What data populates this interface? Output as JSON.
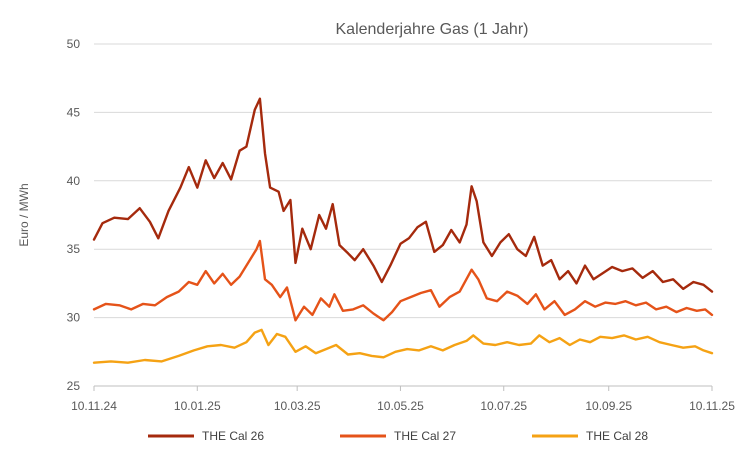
{
  "chart_data": {
    "type": "line",
    "title": "Kalenderjahre Gas (1 Jahr)",
    "xlabel": "",
    "ylabel": "Euro / MWh",
    "ylim": [
      25,
      50
    ],
    "y_ticks": [
      "25",
      "30",
      "35",
      "40",
      "45",
      "50"
    ],
    "x_range": [
      "2024-11-10",
      "2025-11-10"
    ],
    "x_ticks": [
      {
        "date": "2024-11-10",
        "label": "10.11.24"
      },
      {
        "date": "2025-01-10",
        "label": "10.01.25"
      },
      {
        "date": "2025-03-10",
        "label": "10.03.25"
      },
      {
        "date": "2025-05-10",
        "label": "10.05.25"
      },
      {
        "date": "2025-07-10",
        "label": "10.07.25"
      },
      {
        "date": "2025-09-10",
        "label": "10.09.25"
      },
      {
        "date": "2025-11-10",
        "label": "10.11.25"
      }
    ],
    "grid": true,
    "legend_position": "bottom",
    "series": [
      {
        "name": "THE Cal 26",
        "color": "#a52a0d",
        "points": [
          [
            "2024-11-10",
            35.7
          ],
          [
            "2024-11-15",
            36.9
          ],
          [
            "2024-11-22",
            37.3
          ],
          [
            "2024-11-30",
            37.2
          ],
          [
            "2024-12-07",
            38.0
          ],
          [
            "2024-12-13",
            37.0
          ],
          [
            "2024-12-18",
            35.8
          ],
          [
            "2024-12-24",
            37.8
          ],
          [
            "2024-12-31",
            39.5
          ],
          [
            "2025-01-05",
            41.0
          ],
          [
            "2025-01-10",
            39.5
          ],
          [
            "2025-01-15",
            41.5
          ],
          [
            "2025-01-20",
            40.2
          ],
          [
            "2025-01-25",
            41.3
          ],
          [
            "2025-01-30",
            40.1
          ],
          [
            "2025-02-04",
            42.2
          ],
          [
            "2025-02-08",
            42.5
          ],
          [
            "2025-02-13",
            45.2
          ],
          [
            "2025-02-16",
            46.0
          ],
          [
            "2025-02-19",
            42.0
          ],
          [
            "2025-02-22",
            39.5
          ],
          [
            "2025-02-27",
            39.2
          ],
          [
            "2025-03-02",
            37.8
          ],
          [
            "2025-03-06",
            38.6
          ],
          [
            "2025-03-09",
            34.0
          ],
          [
            "2025-03-13",
            36.5
          ],
          [
            "2025-03-18",
            35.0
          ],
          [
            "2025-03-23",
            37.5
          ],
          [
            "2025-03-27",
            36.5
          ],
          [
            "2025-03-31",
            38.3
          ],
          [
            "2025-04-04",
            35.3
          ],
          [
            "2025-04-09",
            34.7
          ],
          [
            "2025-04-13",
            34.2
          ],
          [
            "2025-04-18",
            35.0
          ],
          [
            "2025-04-24",
            33.8
          ],
          [
            "2025-04-29",
            32.6
          ],
          [
            "2025-05-04",
            33.8
          ],
          [
            "2025-05-10",
            35.4
          ],
          [
            "2025-05-15",
            35.8
          ],
          [
            "2025-05-20",
            36.6
          ],
          [
            "2025-05-25",
            37.0
          ],
          [
            "2025-05-30",
            34.8
          ],
          [
            "2025-06-04",
            35.3
          ],
          [
            "2025-06-09",
            36.4
          ],
          [
            "2025-06-14",
            35.5
          ],
          [
            "2025-06-18",
            36.8
          ],
          [
            "2025-06-21",
            39.6
          ],
          [
            "2025-06-24",
            38.5
          ],
          [
            "2025-06-28",
            35.5
          ],
          [
            "2025-07-03",
            34.5
          ],
          [
            "2025-07-08",
            35.5
          ],
          [
            "2025-07-13",
            36.1
          ],
          [
            "2025-07-18",
            35.0
          ],
          [
            "2025-07-23",
            34.5
          ],
          [
            "2025-07-28",
            35.9
          ],
          [
            "2025-08-02",
            33.8
          ],
          [
            "2025-08-07",
            34.2
          ],
          [
            "2025-08-12",
            32.8
          ],
          [
            "2025-08-17",
            33.4
          ],
          [
            "2025-08-22",
            32.5
          ],
          [
            "2025-08-27",
            33.8
          ],
          [
            "2025-09-01",
            32.8
          ],
          [
            "2025-09-06",
            33.2
          ],
          [
            "2025-09-12",
            33.7
          ],
          [
            "2025-09-18",
            33.4
          ],
          [
            "2025-09-24",
            33.6
          ],
          [
            "2025-09-30",
            32.9
          ],
          [
            "2025-10-06",
            33.4
          ],
          [
            "2025-10-12",
            32.6
          ],
          [
            "2025-10-18",
            32.8
          ],
          [
            "2025-10-24",
            32.1
          ],
          [
            "2025-10-30",
            32.6
          ],
          [
            "2025-11-05",
            32.4
          ],
          [
            "2025-11-10",
            31.9
          ]
        ]
      },
      {
        "name": "THE Cal 27",
        "color": "#e55319",
        "points": [
          [
            "2024-11-10",
            30.6
          ],
          [
            "2024-11-17",
            31.0
          ],
          [
            "2024-11-25",
            30.9
          ],
          [
            "2024-12-02",
            30.6
          ],
          [
            "2024-12-09",
            31.0
          ],
          [
            "2024-12-16",
            30.9
          ],
          [
            "2024-12-23",
            31.5
          ],
          [
            "2024-12-30",
            31.9
          ],
          [
            "2025-01-05",
            32.6
          ],
          [
            "2025-01-10",
            32.4
          ],
          [
            "2025-01-15",
            33.4
          ],
          [
            "2025-01-20",
            32.5
          ],
          [
            "2025-01-25",
            33.2
          ],
          [
            "2025-01-30",
            32.4
          ],
          [
            "2025-02-04",
            33.0
          ],
          [
            "2025-02-09",
            34.0
          ],
          [
            "2025-02-14",
            35.0
          ],
          [
            "2025-02-16",
            35.6
          ],
          [
            "2025-02-19",
            32.8
          ],
          [
            "2025-02-23",
            32.4
          ],
          [
            "2025-02-28",
            31.5
          ],
          [
            "2025-03-04",
            32.2
          ],
          [
            "2025-03-09",
            29.8
          ],
          [
            "2025-03-14",
            30.8
          ],
          [
            "2025-03-19",
            30.2
          ],
          [
            "2025-03-24",
            31.4
          ],
          [
            "2025-03-29",
            30.8
          ],
          [
            "2025-04-01",
            31.7
          ],
          [
            "2025-04-06",
            30.5
          ],
          [
            "2025-04-12",
            30.6
          ],
          [
            "2025-04-18",
            30.9
          ],
          [
            "2025-04-24",
            30.3
          ],
          [
            "2025-04-30",
            29.8
          ],
          [
            "2025-05-05",
            30.4
          ],
          [
            "2025-05-10",
            31.2
          ],
          [
            "2025-05-16",
            31.5
          ],
          [
            "2025-05-22",
            31.8
          ],
          [
            "2025-05-28",
            32.0
          ],
          [
            "2025-06-02",
            30.8
          ],
          [
            "2025-06-08",
            31.5
          ],
          [
            "2025-06-14",
            31.9
          ],
          [
            "2025-06-21",
            33.5
          ],
          [
            "2025-06-25",
            32.8
          ],
          [
            "2025-06-30",
            31.4
          ],
          [
            "2025-07-06",
            31.2
          ],
          [
            "2025-07-12",
            31.9
          ],
          [
            "2025-07-18",
            31.6
          ],
          [
            "2025-07-24",
            31.0
          ],
          [
            "2025-07-29",
            31.7
          ],
          [
            "2025-08-03",
            30.6
          ],
          [
            "2025-08-09",
            31.2
          ],
          [
            "2025-08-15",
            30.2
          ],
          [
            "2025-08-21",
            30.6
          ],
          [
            "2025-08-27",
            31.2
          ],
          [
            "2025-09-02",
            30.8
          ],
          [
            "2025-09-08",
            31.1
          ],
          [
            "2025-09-14",
            31.0
          ],
          [
            "2025-09-20",
            31.2
          ],
          [
            "2025-09-26",
            30.9
          ],
          [
            "2025-10-02",
            31.1
          ],
          [
            "2025-10-08",
            30.6
          ],
          [
            "2025-10-14",
            30.8
          ],
          [
            "2025-10-20",
            30.4
          ],
          [
            "2025-10-26",
            30.7
          ],
          [
            "2025-11-01",
            30.5
          ],
          [
            "2025-11-06",
            30.6
          ],
          [
            "2025-11-10",
            30.2
          ]
        ]
      },
      {
        "name": "THE Cal 28",
        "color": "#f5a214",
        "points": [
          [
            "2024-11-10",
            26.7
          ],
          [
            "2024-11-20",
            26.8
          ],
          [
            "2024-11-30",
            26.7
          ],
          [
            "2024-12-10",
            26.9
          ],
          [
            "2024-12-20",
            26.8
          ],
          [
            "2024-12-30",
            27.2
          ],
          [
            "2025-01-08",
            27.6
          ],
          [
            "2025-01-16",
            27.9
          ],
          [
            "2025-01-24",
            28.0
          ],
          [
            "2025-02-01",
            27.8
          ],
          [
            "2025-02-08",
            28.2
          ],
          [
            "2025-02-13",
            28.9
          ],
          [
            "2025-02-17",
            29.1
          ],
          [
            "2025-02-21",
            28.0
          ],
          [
            "2025-02-26",
            28.8
          ],
          [
            "2025-03-03",
            28.6
          ],
          [
            "2025-03-09",
            27.5
          ],
          [
            "2025-03-15",
            27.9
          ],
          [
            "2025-03-21",
            27.4
          ],
          [
            "2025-03-27",
            27.7
          ],
          [
            "2025-04-02",
            28.0
          ],
          [
            "2025-04-09",
            27.3
          ],
          [
            "2025-04-16",
            27.4
          ],
          [
            "2025-04-23",
            27.2
          ],
          [
            "2025-04-30",
            27.1
          ],
          [
            "2025-05-07",
            27.5
          ],
          [
            "2025-05-14",
            27.7
          ],
          [
            "2025-05-21",
            27.6
          ],
          [
            "2025-05-28",
            27.9
          ],
          [
            "2025-06-04",
            27.6
          ],
          [
            "2025-06-11",
            28.0
          ],
          [
            "2025-06-18",
            28.3
          ],
          [
            "2025-06-22",
            28.7
          ],
          [
            "2025-06-28",
            28.1
          ],
          [
            "2025-07-05",
            28.0
          ],
          [
            "2025-07-12",
            28.2
          ],
          [
            "2025-07-19",
            28.0
          ],
          [
            "2025-07-26",
            28.1
          ],
          [
            "2025-07-31",
            28.7
          ],
          [
            "2025-08-06",
            28.2
          ],
          [
            "2025-08-12",
            28.5
          ],
          [
            "2025-08-18",
            28.0
          ],
          [
            "2025-08-24",
            28.4
          ],
          [
            "2025-08-30",
            28.2
          ],
          [
            "2025-09-05",
            28.6
          ],
          [
            "2025-09-12",
            28.5
          ],
          [
            "2025-09-19",
            28.7
          ],
          [
            "2025-09-26",
            28.4
          ],
          [
            "2025-10-03",
            28.6
          ],
          [
            "2025-10-10",
            28.2
          ],
          [
            "2025-10-17",
            28.0
          ],
          [
            "2025-10-24",
            27.8
          ],
          [
            "2025-10-31",
            27.9
          ],
          [
            "2025-11-05",
            27.6
          ],
          [
            "2025-11-10",
            27.4
          ]
        ]
      }
    ]
  }
}
